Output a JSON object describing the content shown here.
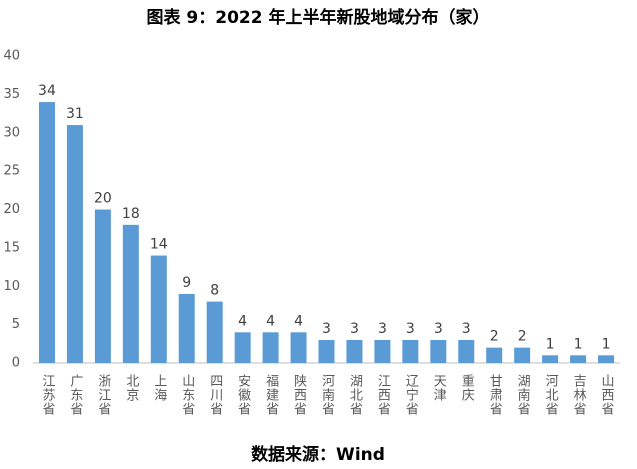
{
  "chart_data": {
    "type": "bar",
    "title": "图表 9：2022 年上半年新股地域分布（家）",
    "source": "数据来源：Wind",
    "categories": [
      "江苏省",
      "广东省",
      "浙江省",
      "北京",
      "上海",
      "山东省",
      "四川省",
      "安徽省",
      "福建省",
      "陕西省",
      "河南省",
      "湖北省",
      "江西省",
      "辽宁省",
      "天津",
      "重庆",
      "甘肃省",
      "湖南省",
      "河北省",
      "吉林省",
      "山西省"
    ],
    "values": [
      34,
      31,
      20,
      18,
      14,
      9,
      8,
      4,
      4,
      4,
      3,
      3,
      3,
      3,
      3,
      3,
      2,
      2,
      1,
      1,
      1
    ],
    "color": "#5b9bd5",
    "ylim": [
      0,
      40
    ],
    "yticks": [
      0,
      5,
      10,
      15,
      20,
      25,
      30,
      35,
      40
    ],
    "grid": false
  }
}
